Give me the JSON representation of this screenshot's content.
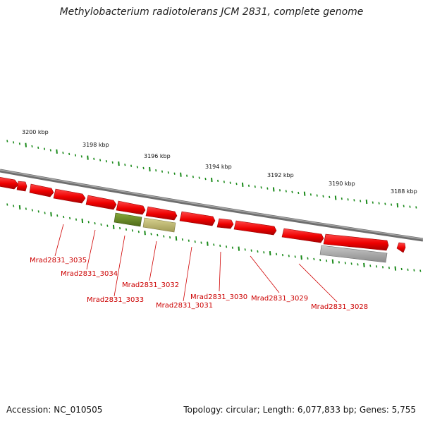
{
  "title": "Methylobacterium radiotolerans JCM 2831, complete genome",
  "footer": {
    "accession": "Accession: NC_010505",
    "summary": "Topology: circular; Length: 6,077,833 bp; Genes: 5,755"
  },
  "colors": {
    "backbone": "#808080",
    "cds_forward": "#ee0000",
    "cds_forward_dark": "#b30000",
    "tick": "#1a8a1a",
    "label": "#cc0000",
    "rna_olive": "#6b8e23",
    "rna_khaki": "#bdb76b",
    "pseudo_gray": "#a9a9a9"
  },
  "scale_labels": [
    "3200 kbp",
    "3198 kbp",
    "3196 kbp",
    "3194 kbp",
    "3192 kbp",
    "3190 kbp",
    "3188 kbp"
  ],
  "gene_labels": [
    "Mrad2831_3035",
    "Mrad2831_3034",
    "Mrad2831_3033",
    "Mrad2831_3032",
    "Mrad2831_3031",
    "Mrad2831_3030",
    "Mrad2831_3029",
    "Mrad2831_3028"
  ]
}
